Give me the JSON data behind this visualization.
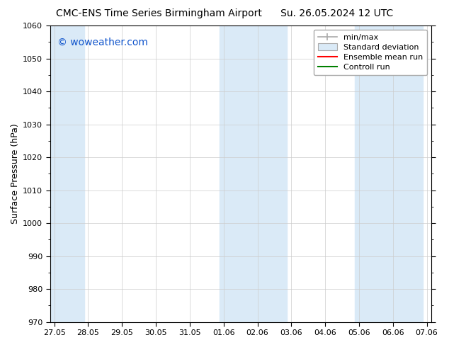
{
  "title_left": "CMC-ENS Time Series Birmingham Airport",
  "title_right": "Su. 26.05.2024 12 UTC",
  "ylabel": "Surface Pressure (hPa)",
  "ylim": [
    970,
    1060
  ],
  "yticks": [
    970,
    980,
    990,
    1000,
    1010,
    1020,
    1030,
    1040,
    1050,
    1060
  ],
  "background_color": "#ffffff",
  "plot_bg_color": "#ffffff",
  "shaded_band_color": "#daeaf7",
  "watermark_text": "© woweather.com",
  "watermark_color": "#1155cc",
  "legend_entries": [
    "min/max",
    "Standard deviation",
    "Ensemble mean run",
    "Controll run"
  ],
  "legend_colors": [
    "#aaaaaa",
    "#cccccc",
    "#ff0000",
    "#008000"
  ],
  "x_start_day": 0,
  "x_end_day": 41,
  "xtick_labels": [
    "27.05",
    "28.05",
    "29.05",
    "30.05",
    "31.05",
    "01.06",
    "02.06",
    "03.06",
    "04.06",
    "05.06",
    "06.06",
    "07.06"
  ],
  "xtick_positions": [
    0,
    4,
    8,
    12,
    16,
    20,
    24,
    28,
    32,
    36,
    40,
    44
  ],
  "shaded_bands": [
    {
      "start": 0,
      "end": 4
    },
    {
      "start": 20,
      "end": 28
    },
    {
      "start": 36,
      "end": 44
    }
  ],
  "grid_color": "#cccccc",
  "tick_color": "#000000",
  "font_size_title": 10,
  "font_size_axis": 9,
  "font_size_tick": 8,
  "font_size_legend": 8,
  "font_size_watermark": 10
}
